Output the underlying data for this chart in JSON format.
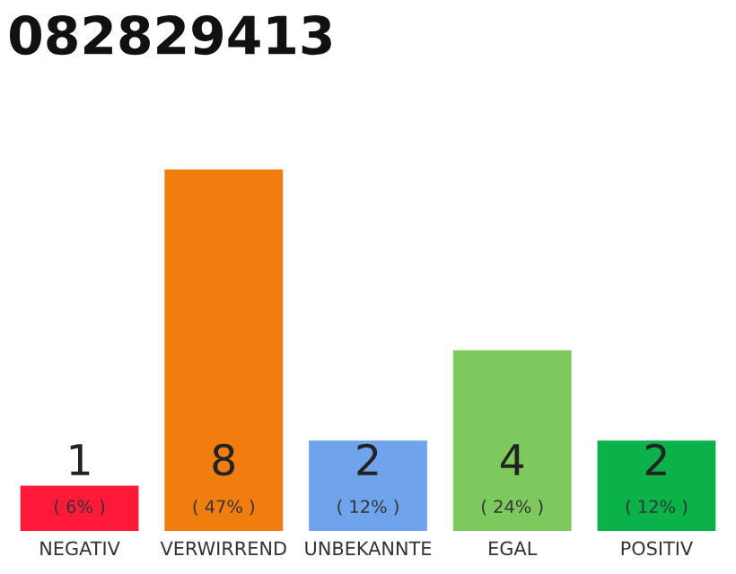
{
  "chart_data": {
    "type": "bar",
    "title": "082829413",
    "categories": [
      "NEGATIV",
      "VERWIRREND",
      "UNBEKANNTE",
      "EGAL",
      "POSITIV"
    ],
    "values": [
      1,
      8,
      2,
      4,
      2
    ],
    "colors": [
      "#ff1a3a",
      "#f07d0e",
      "#6fa3ec",
      "#7ec95d",
      "#0bb24a"
    ],
    "value_labels": [
      "1\n( 6% )",
      "8\n( 47% )",
      "2\n( 12% )",
      "4\n( 24% )",
      "2\n( 12% )"
    ],
    "ylim": [
      0,
      8
    ],
    "tick_labels": "x",
    "grid": false,
    "legend": false
  }
}
